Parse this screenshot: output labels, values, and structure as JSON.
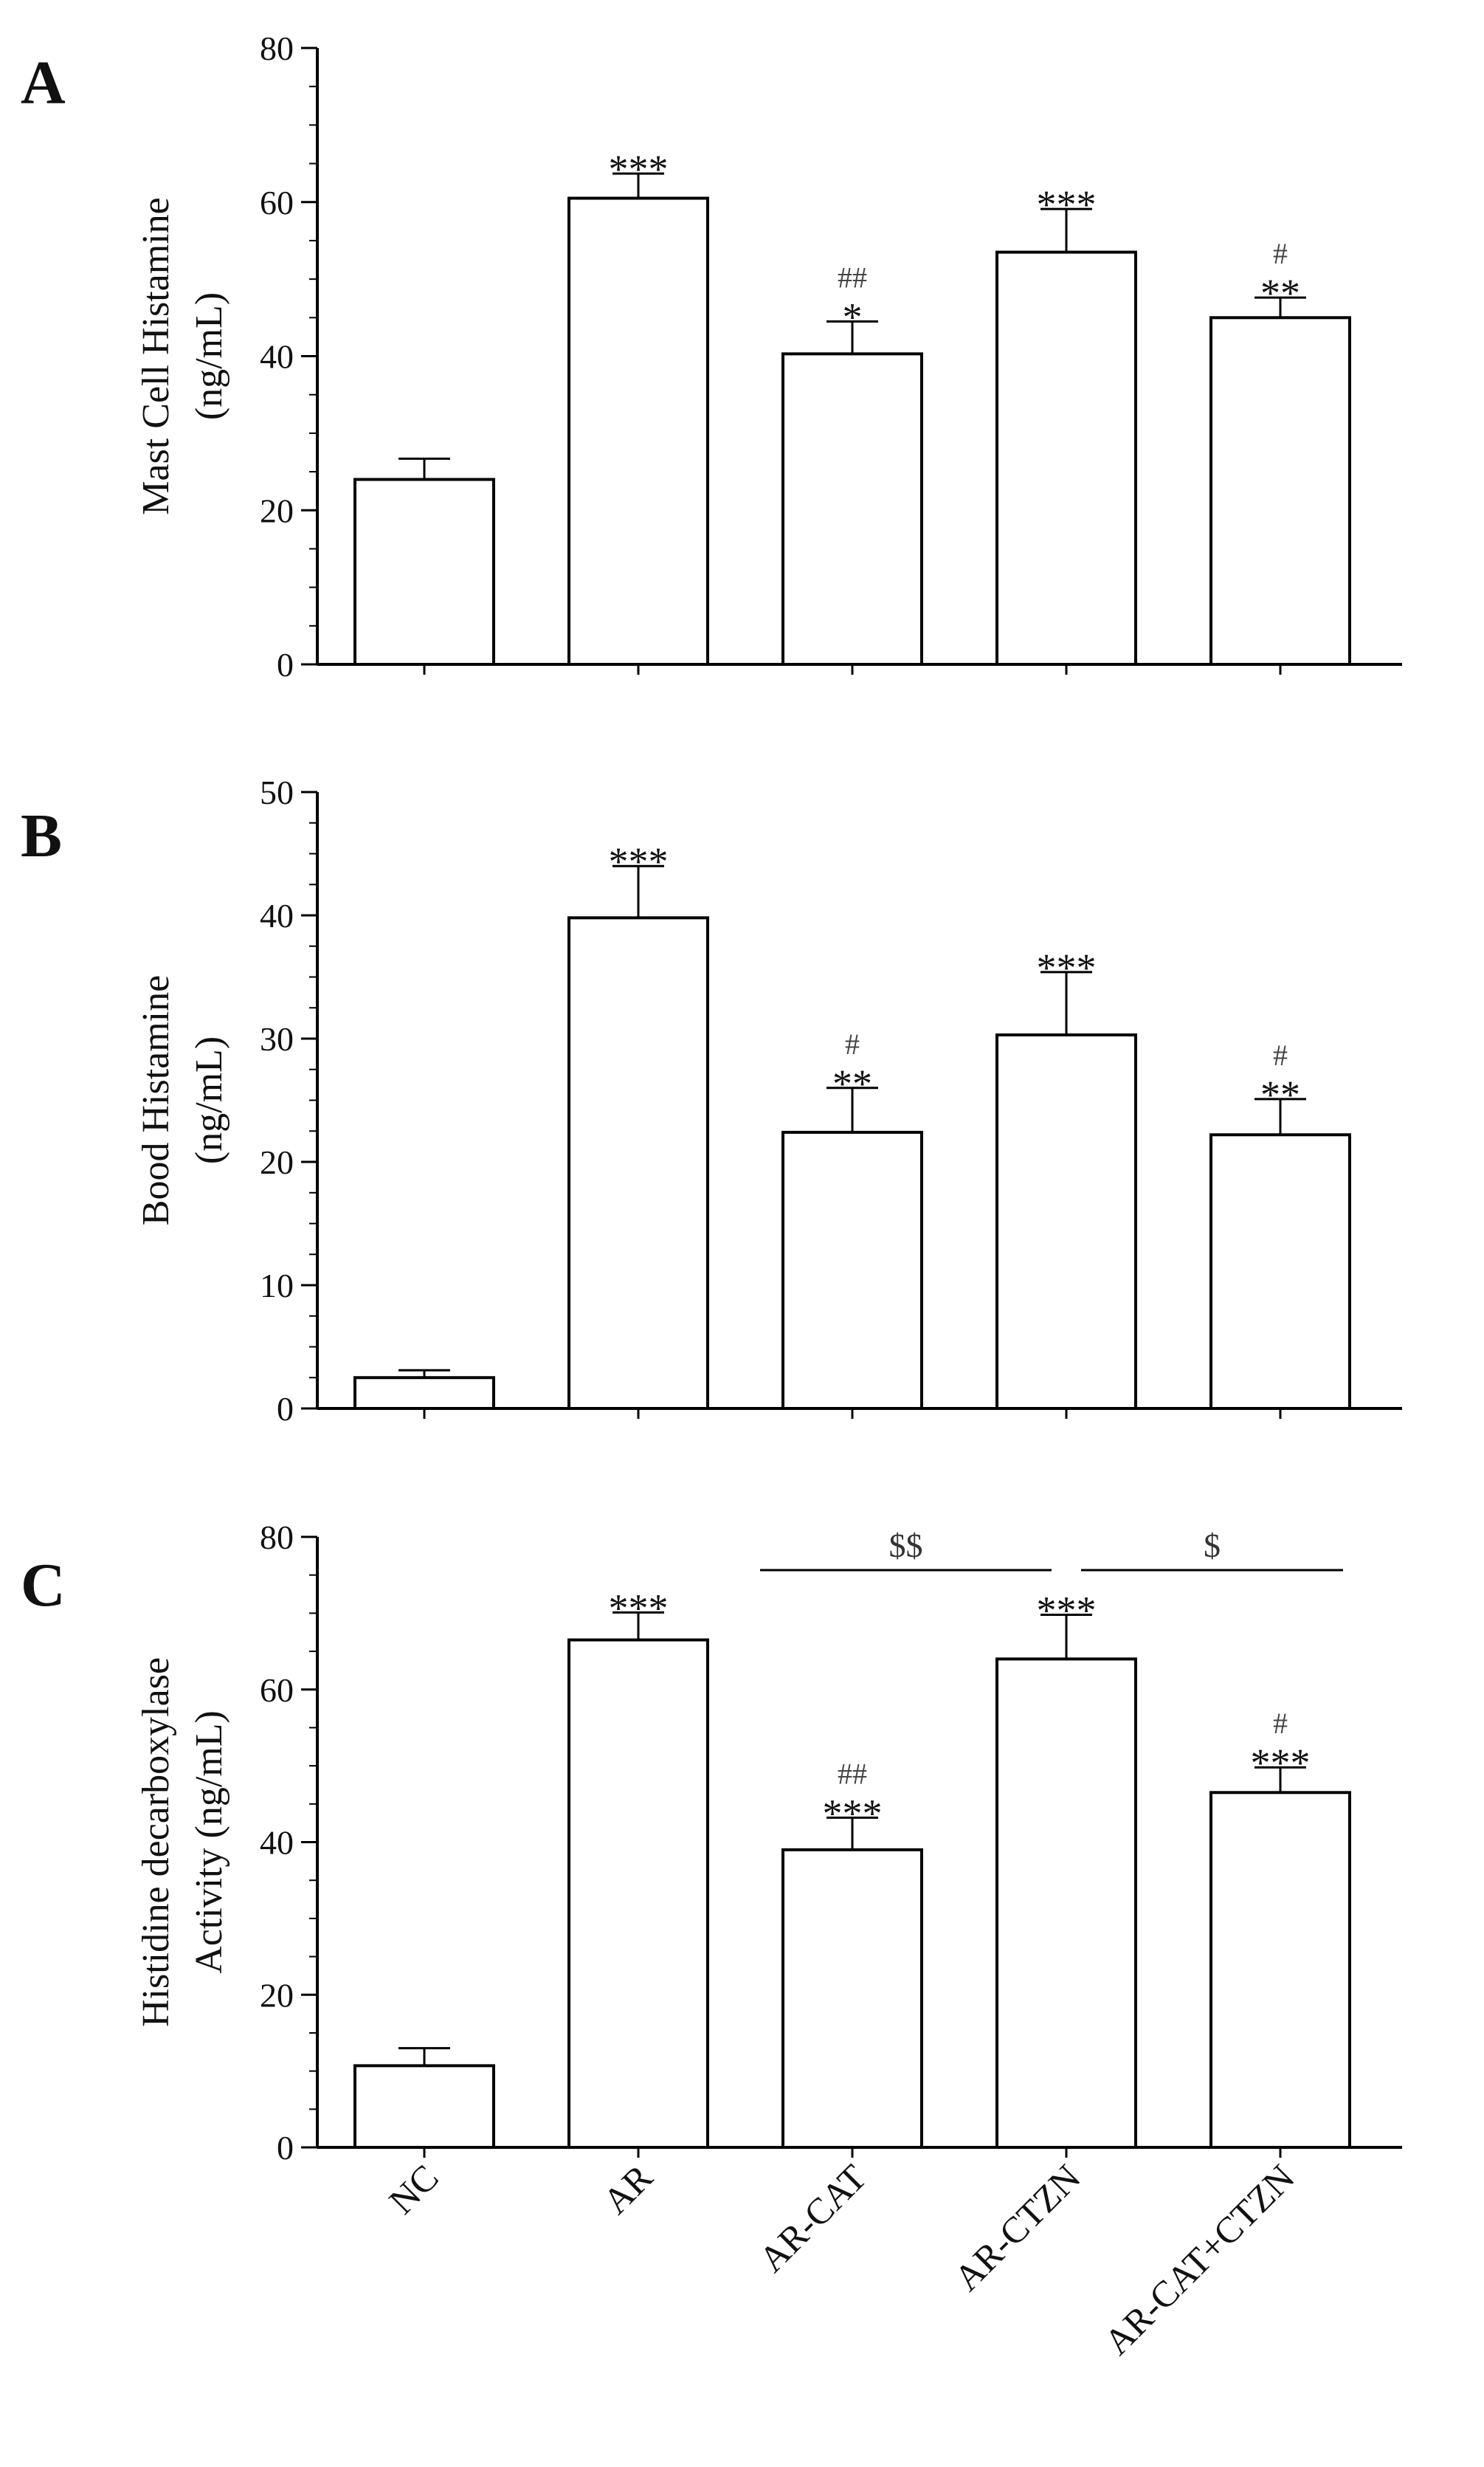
{
  "figure_panels": [
    "A",
    "B",
    "C"
  ],
  "categories": [
    "NC",
    "AR",
    "AR-CAT",
    "AR-CTZN",
    "AR-CAT+CTZN"
  ],
  "colors": {
    "bar_fill": "#ffffff",
    "stroke": "#000000",
    "text": "#111111"
  },
  "chart_data": [
    {
      "type": "bar",
      "panel": "A",
      "ylabel_line1": "Mast Cell Histamine",
      "ylabel_line2": "(ng/mL)",
      "ylim": [
        0,
        80
      ],
      "yticks": [
        0,
        20,
        40,
        60,
        80
      ],
      "categories": [
        "NC",
        "AR",
        "AR-CAT",
        "AR-CTZN",
        "AR-CAT+CTZN"
      ],
      "values": [
        24,
        60.5,
        40.3,
        53.5,
        45
      ],
      "errors": [
        2.7,
        3.2,
        4.2,
        5.6,
        2.6
      ],
      "stars": [
        "",
        "***",
        "*",
        "***",
        "**"
      ],
      "hashes": [
        "",
        "",
        "##",
        "",
        "#"
      ],
      "grid": false
    },
    {
      "type": "bar",
      "panel": "B",
      "ylabel_line1": "Bood Histamine",
      "ylabel_line2": "(ng/mL)",
      "ylim": [
        0,
        50
      ],
      "yticks": [
        0,
        10,
        20,
        30,
        40,
        50
      ],
      "categories": [
        "NC",
        "AR",
        "AR-CAT",
        "AR-CTZN",
        "AR-CAT+CTZN"
      ],
      "values": [
        2.5,
        39.8,
        22.4,
        30.3,
        22.2
      ],
      "errors": [
        0.6,
        4.2,
        3.6,
        5.1,
        2.9
      ],
      "stars": [
        "",
        "***",
        "**",
        "***",
        "**"
      ],
      "hashes": [
        "",
        "",
        "#",
        "",
        "#"
      ],
      "grid": false
    },
    {
      "type": "bar",
      "panel": "C",
      "ylabel_line1": "Histidine decarboxylase",
      "ylabel_line2": "Activity (ng/mL)",
      "ylim": [
        0,
        80
      ],
      "yticks": [
        0,
        20,
        40,
        60,
        80
      ],
      "categories": [
        "NC",
        "AR",
        "AR-CAT",
        "AR-CTZN",
        "AR-CAT+CTZN"
      ],
      "values": [
        10.7,
        66.5,
        39,
        64,
        46.5
      ],
      "errors": [
        2.3,
        3.6,
        4.2,
        5.8,
        3.3
      ],
      "stars": [
        "",
        "***",
        "***",
        "***",
        "***"
      ],
      "hashes": [
        "",
        "",
        "##",
        "",
        "#"
      ],
      "brackets": [
        {
          "from": 2,
          "to": 3,
          "label": "$$"
        },
        {
          "from": 3,
          "to": 4,
          "label": "$"
        }
      ],
      "grid": false
    }
  ]
}
